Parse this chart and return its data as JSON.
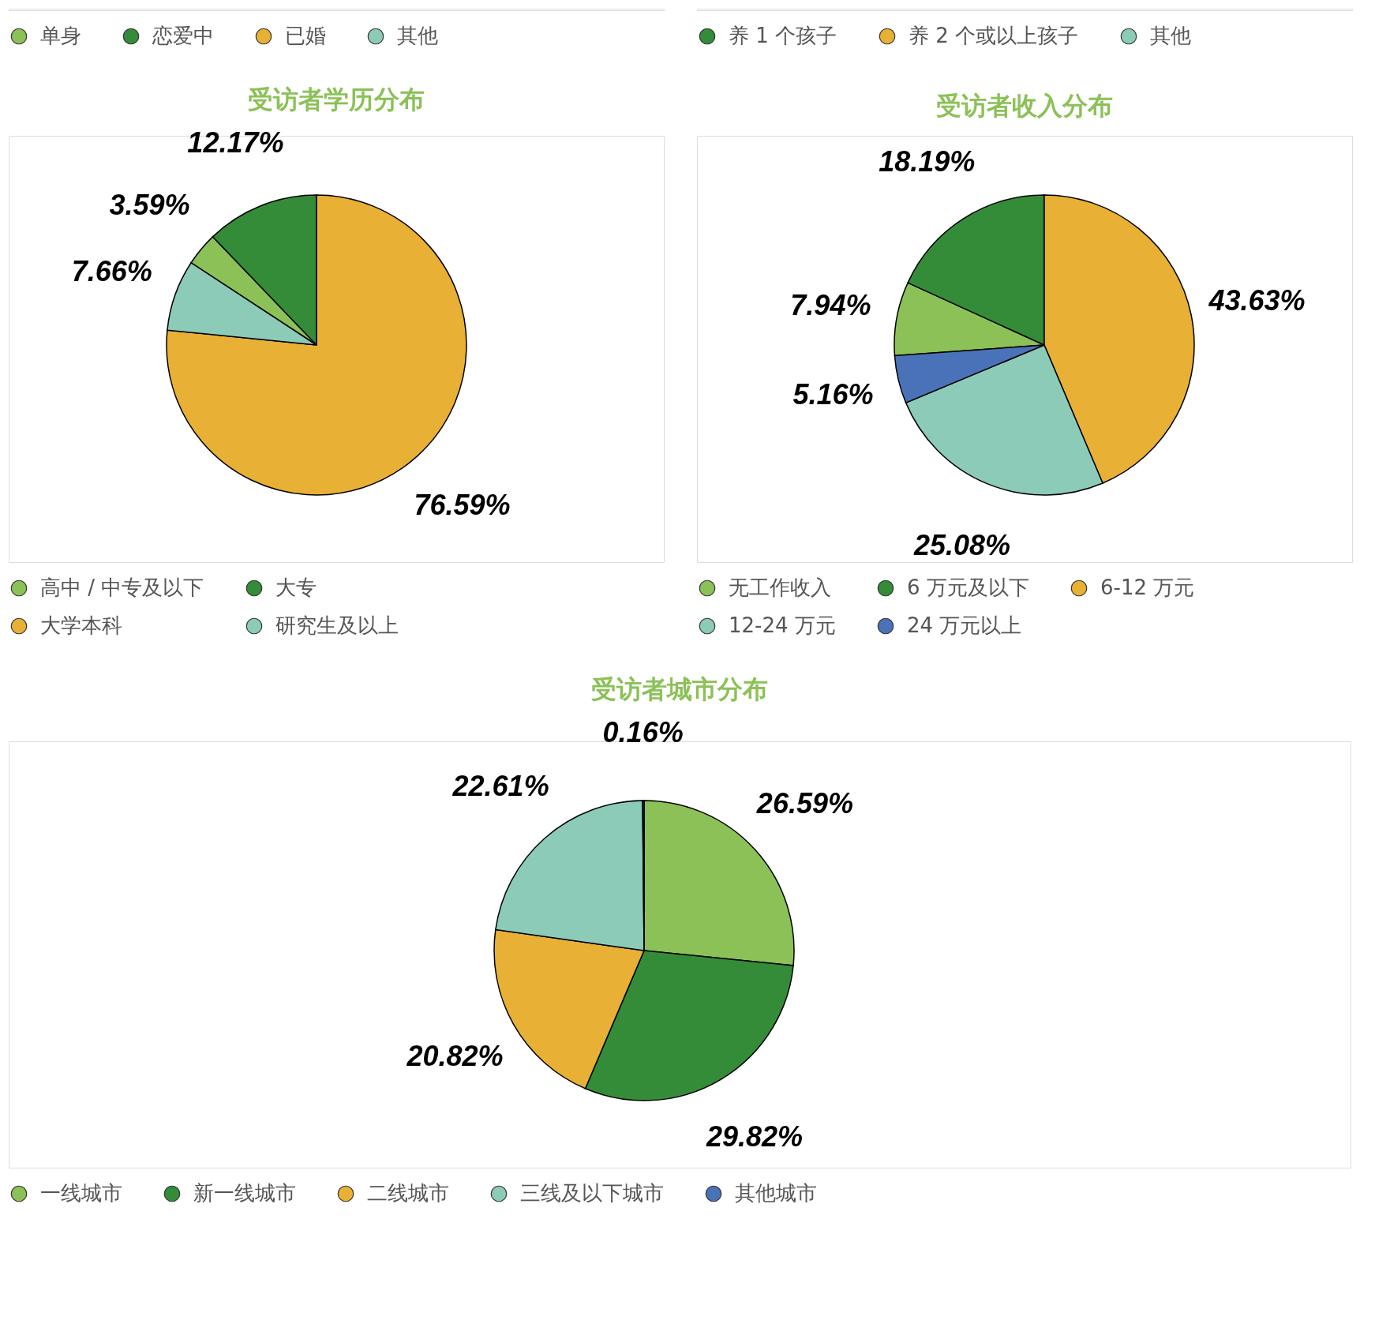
{
  "chart_data": [
    {
      "type": "other",
      "categories": [
        "单身",
        "恋爱中",
        "已婚",
        "其他"
      ],
      "colors": [
        "#8bc157",
        "#348c38",
        "#e8b034",
        "#8ccbb8"
      ]
    },
    {
      "type": "other",
      "categories": [
        "养 1 个孩子",
        "养 2 个或以上孩子",
        "其他"
      ],
      "colors": [
        "#348c38",
        "#e8b034",
        "#8ccbb8"
      ]
    },
    {
      "type": "pie",
      "title": "受访者学历分布",
      "categories": [
        "高中 / 中专及以下",
        "大专",
        "大学本科",
        "研究生及以上"
      ],
      "values": [
        3.59,
        12.17,
        76.59,
        7.66
      ],
      "value_labels": [
        "3.59%",
        "12.17%",
        "76.59%",
        "7.66%"
      ],
      "colors": [
        "#8bc157",
        "#348c38",
        "#e8b034",
        "#8ccbb8"
      ],
      "legend": "bottom"
    },
    {
      "type": "pie",
      "title": "受访者收入分布",
      "categories": [
        "无工作收入",
        "6 万元及以下",
        "6-12 万元",
        "12-24 万元",
        "24 万元以上"
      ],
      "values": [
        7.94,
        18.19,
        43.63,
        25.08,
        5.16
      ],
      "value_labels": [
        "7.94%",
        "18.19%",
        "43.63%",
        "25.08%",
        "5.16%"
      ],
      "colors": [
        "#8bc157",
        "#348c38",
        "#e8b034",
        "#8ccbb8",
        "#4a72b8"
      ],
      "legend": "bottom"
    },
    {
      "type": "pie",
      "title": "受访者城市分布",
      "categories": [
        "一线城市",
        "新一线城市",
        "二线城市",
        "三线及以下城市",
        "其他城市"
      ],
      "values": [
        26.59,
        29.82,
        20.82,
        22.61,
        0.16
      ],
      "value_labels": [
        "26.59%",
        "29.82%",
        "20.82%",
        "22.61%",
        "0.16%"
      ],
      "colors": [
        "#8bc157",
        "#348c38",
        "#e8b034",
        "#8ccbb8",
        "#4a72b8"
      ],
      "legend": "bottom"
    }
  ]
}
